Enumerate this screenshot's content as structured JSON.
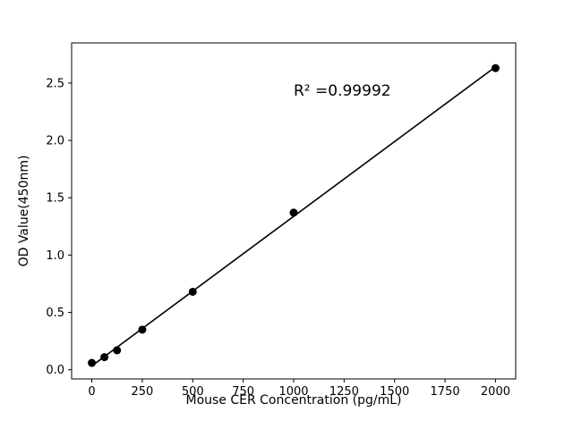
{
  "chart_data": {
    "type": "scatter",
    "title": "",
    "xlabel": "Mouse CER Concentration (pg/mL)",
    "ylabel": "OD Value(450nm)",
    "annotation": "R² =0.99992",
    "x": [
      0,
      62.5,
      125,
      250,
      500,
      1000,
      2000
    ],
    "y": [
      0.06,
      0.11,
      0.17,
      0.35,
      0.68,
      1.37,
      2.63
    ],
    "fit_line": true,
    "xticks": [
      0,
      250,
      500,
      750,
      1000,
      1250,
      1500,
      1750,
      2000
    ],
    "yticks": [
      0.0,
      0.5,
      1.0,
      1.5,
      2.0,
      2.5
    ],
    "xlim": [
      -100,
      2100
    ],
    "ylim": [
      -0.08,
      2.85
    ],
    "grid": false,
    "legend": "none",
    "marker_color": "#000000",
    "line_color": "#000000",
    "background_color": "#ffffff"
  }
}
